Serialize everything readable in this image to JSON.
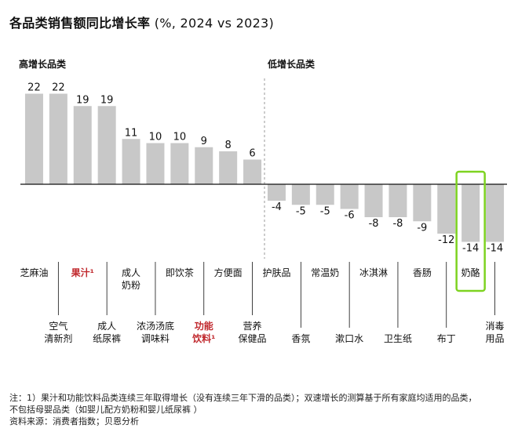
{
  "title": "各品类销售额同比增长率",
  "title_suffix": " (%, 2024 vs 2023)",
  "group_labels": {
    "high": "高增长品类",
    "low": "低增长品类"
  },
  "colors": {
    "bar": "#c8c8c8",
    "highlight_label": "#c0282d",
    "highlight_box": "#7ed321",
    "text": "#111111"
  },
  "chart_data": {
    "type": "bar",
    "title": "各品类销售额同比增长率",
    "ylabel": "",
    "xlabel": "",
    "ylim": [
      -16,
      24
    ],
    "grid": false,
    "categories": [
      "芝麻油",
      "空气清新剂",
      "果汁¹",
      "成人纸尿裤",
      "成人奶粉",
      "浓汤汤底调味料",
      "即饮茶",
      "功能饮料¹",
      "方便面",
      "营养保健品",
      "护肤品",
      "香氛",
      "常温奶",
      "漱口水",
      "冰淇淋",
      "卫生纸",
      "香肠",
      "布丁",
      "奶酪",
      "消毒用品"
    ],
    "values": [
      22,
      22,
      19,
      19,
      11,
      10,
      10,
      9,
      8,
      6,
      -4,
      -5,
      -5,
      -6,
      -8,
      -8,
      -9,
      -12,
      -14,
      -14
    ],
    "value_labels": [
      "22",
      "22",
      "19",
      "19",
      "11",
      "10",
      "10",
      "9",
      "8",
      "6",
      "-4",
      "-5",
      "-5",
      "-6",
      "-8",
      "-8",
      "-9",
      "-12",
      "-14",
      "-14"
    ],
    "category_lines": [
      [
        "芝麻油"
      ],
      [
        "空气",
        "清新剂"
      ],
      [
        "果汁¹"
      ],
      [
        "成人",
        "纸尿裤"
      ],
      [
        "成人",
        "奶粉"
      ],
      [
        "浓汤汤底",
        "调味料"
      ],
      [
        "即饮茶"
      ],
      [
        "功能",
        "饮料¹"
      ],
      [
        "方便面"
      ],
      [
        "营养",
        "保健品"
      ],
      [
        "护肤品"
      ],
      [
        "香氛"
      ],
      [
        "常温奶"
      ],
      [
        "漱口水"
      ],
      [
        "冰淇淋"
      ],
      [
        "卫生纸"
      ],
      [
        "香肠"
      ],
      [
        "布丁"
      ],
      [
        "奶酪"
      ],
      [
        "消毒",
        "用品"
      ]
    ],
    "highlighted_label_categories": [
      "果汁¹",
      "功能饮料¹"
    ],
    "boxed_category": "奶酪"
  },
  "footnote": {
    "lines": [
      "注：1）果汁和功能饮料品类连续三年取得增长（没有连续三年下滑的品类）；双速增长的测算基于所有家庭均适用的品类，",
      "不包括母婴品类（如婴儿配方奶粉和婴儿纸尿裤 ）",
      "资料来源：消费者指数；贝恩分析"
    ]
  }
}
